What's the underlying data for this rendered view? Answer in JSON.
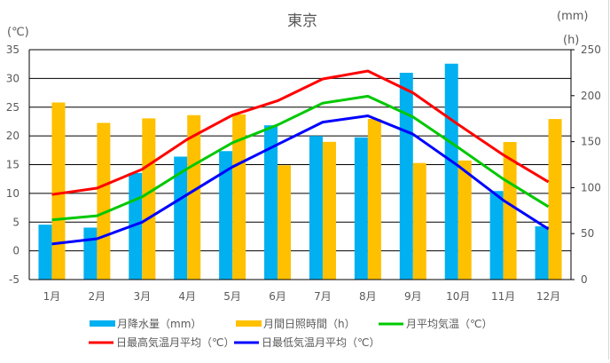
{
  "chart_data": {
    "type": "bar+line",
    "title": "東京",
    "left_unit": "(℃)",
    "right_unit_top": "(mm)",
    "right_unit_bottom": "(h)",
    "categories": [
      "1月",
      "2月",
      "3月",
      "4月",
      "5月",
      "6月",
      "7月",
      "8月",
      "9月",
      "10月",
      "11月",
      "12月"
    ],
    "ylim_left": [
      -5,
      35
    ],
    "yticks_left": [
      "35",
      "30",
      "25",
      "20",
      "15",
      "10",
      "5",
      "0",
      "-5"
    ],
    "ylim_right": [
      0,
      250
    ],
    "yticks_right": [
      "250",
      "200",
      "150",
      "100",
      "50",
      "0"
    ],
    "grid": true,
    "legend_position": "bottom",
    "bar_series": [
      {
        "name": "月降水量（mm）",
        "axis": "right",
        "color": "#00B0F0",
        "values": [
          59.7,
          56.5,
          116.0,
          133.7,
          139.7,
          167.8,
          156.2,
          154.7,
          224.9,
          234.8,
          96.3,
          57.9
        ]
      },
      {
        "name": "月間日照時間（h）",
        "axis": "right",
        "color": "#FFC000",
        "values": [
          192.6,
          170.4,
          175.3,
          178.8,
          179.6,
          124.2,
          149.8,
          174.7,
          126.8,
          129.5,
          149.6,
          174.6
        ]
      }
    ],
    "line_series": [
      {
        "name": "月平均気温（℃）",
        "axis": "left",
        "color": "#00C800",
        "values": [
          5.4,
          6.1,
          9.4,
          14.3,
          18.8,
          21.9,
          25.7,
          26.9,
          23.3,
          18.0,
          12.5,
          7.7
        ]
      },
      {
        "name": "日最高気温月平均（℃）",
        "axis": "left",
        "color": "#FF0000",
        "values": [
          9.8,
          10.9,
          14.2,
          19.4,
          23.6,
          26.1,
          29.9,
          31.3,
          27.5,
          22.0,
          16.7,
          12.0
        ]
      },
      {
        "name": "日最低気温月平均（℃）",
        "axis": "left",
        "color": "#0000FF",
        "values": [
          1.2,
          2.1,
          5.0,
          9.8,
          14.6,
          18.5,
          22.4,
          23.5,
          20.3,
          14.8,
          8.8,
          3.8
        ]
      }
    ],
    "legend_order": [
      {
        "series": "bar",
        "index": 0
      },
      {
        "series": "bar",
        "index": 1
      },
      {
        "series": "line",
        "index": 0
      },
      {
        "series": "line",
        "index": 1
      },
      {
        "series": "line",
        "index": 2
      }
    ]
  }
}
